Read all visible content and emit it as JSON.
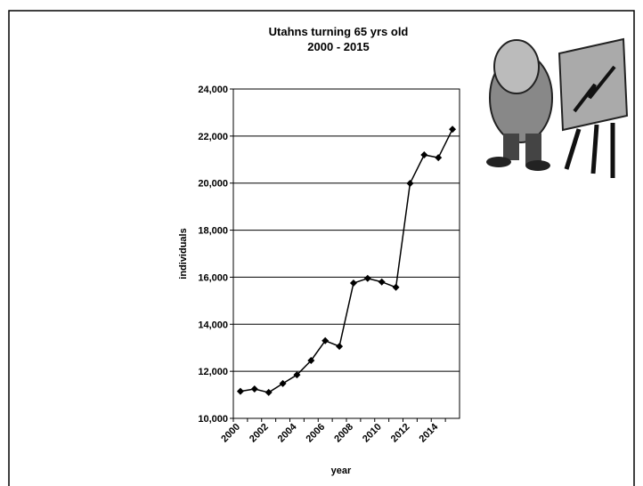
{
  "chart_data": {
    "type": "line",
    "title": "Utahns turning 65 yrs old",
    "subtitle": "2000 - 2015",
    "x_label": "year",
    "y_label": "individuals",
    "categories": [
      "2000",
      null,
      "2002",
      null,
      "2004",
      null,
      "2006",
      null,
      "2008",
      null,
      "2010",
      null,
      "2012",
      null,
      "2014",
      null
    ],
    "values": [
      11150,
      11250,
      11100,
      11480,
      11850,
      12460,
      13300,
      13060,
      15750,
      15950,
      15800,
      15570,
      19990,
      21200,
      21080,
      22290
    ],
    "color": "#000000",
    "ylim": [
      10000,
      24000
    ],
    "yticks": [
      {
        "value": 10000,
        "label": "10,000"
      },
      {
        "value": 12000,
        "label": "12,000"
      },
      {
        "value": 14000,
        "label": "14,000"
      },
      {
        "value": 16000,
        "label": "16,000"
      },
      {
        "value": 18000,
        "label": "18,000"
      },
      {
        "value": 20000,
        "label": "20,000"
      },
      {
        "value": 22000,
        "label": "22,000"
      },
      {
        "value": 24000,
        "label": "24,000"
      }
    ],
    "grid": true
  }
}
